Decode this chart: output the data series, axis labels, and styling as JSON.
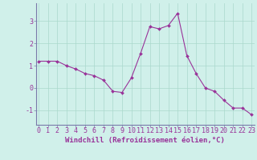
{
  "x": [
    0,
    1,
    2,
    3,
    4,
    5,
    6,
    7,
    8,
    9,
    10,
    11,
    12,
    13,
    14,
    15,
    16,
    17,
    18,
    19,
    20,
    21,
    22,
    23
  ],
  "y": [
    1.2,
    1.2,
    1.2,
    1.0,
    0.85,
    0.65,
    0.55,
    0.35,
    -0.15,
    -0.2,
    0.45,
    1.55,
    2.75,
    2.65,
    2.8,
    3.35,
    1.45,
    0.65,
    0.0,
    -0.15,
    -0.55,
    -0.9,
    -0.9,
    -1.2
  ],
  "line_color": "#993399",
  "marker": "D",
  "marker_size": 2.0,
  "linewidth": 0.8,
  "bg_color": "#d0f0ea",
  "grid_color": "#aad8cc",
  "xlabel": "Windchill (Refroidissement éolien,°C)",
  "xlabel_fontsize": 6.5,
  "xlabel_color": "#993399",
  "yticks": [
    -1,
    0,
    1,
    2,
    3
  ],
  "ylim": [
    -1.65,
    3.8
  ],
  "xlim": [
    -0.3,
    23.3
  ],
  "tick_fontsize": 6.0,
  "tick_color": "#993399",
  "axis_color": "#7a7aaa"
}
